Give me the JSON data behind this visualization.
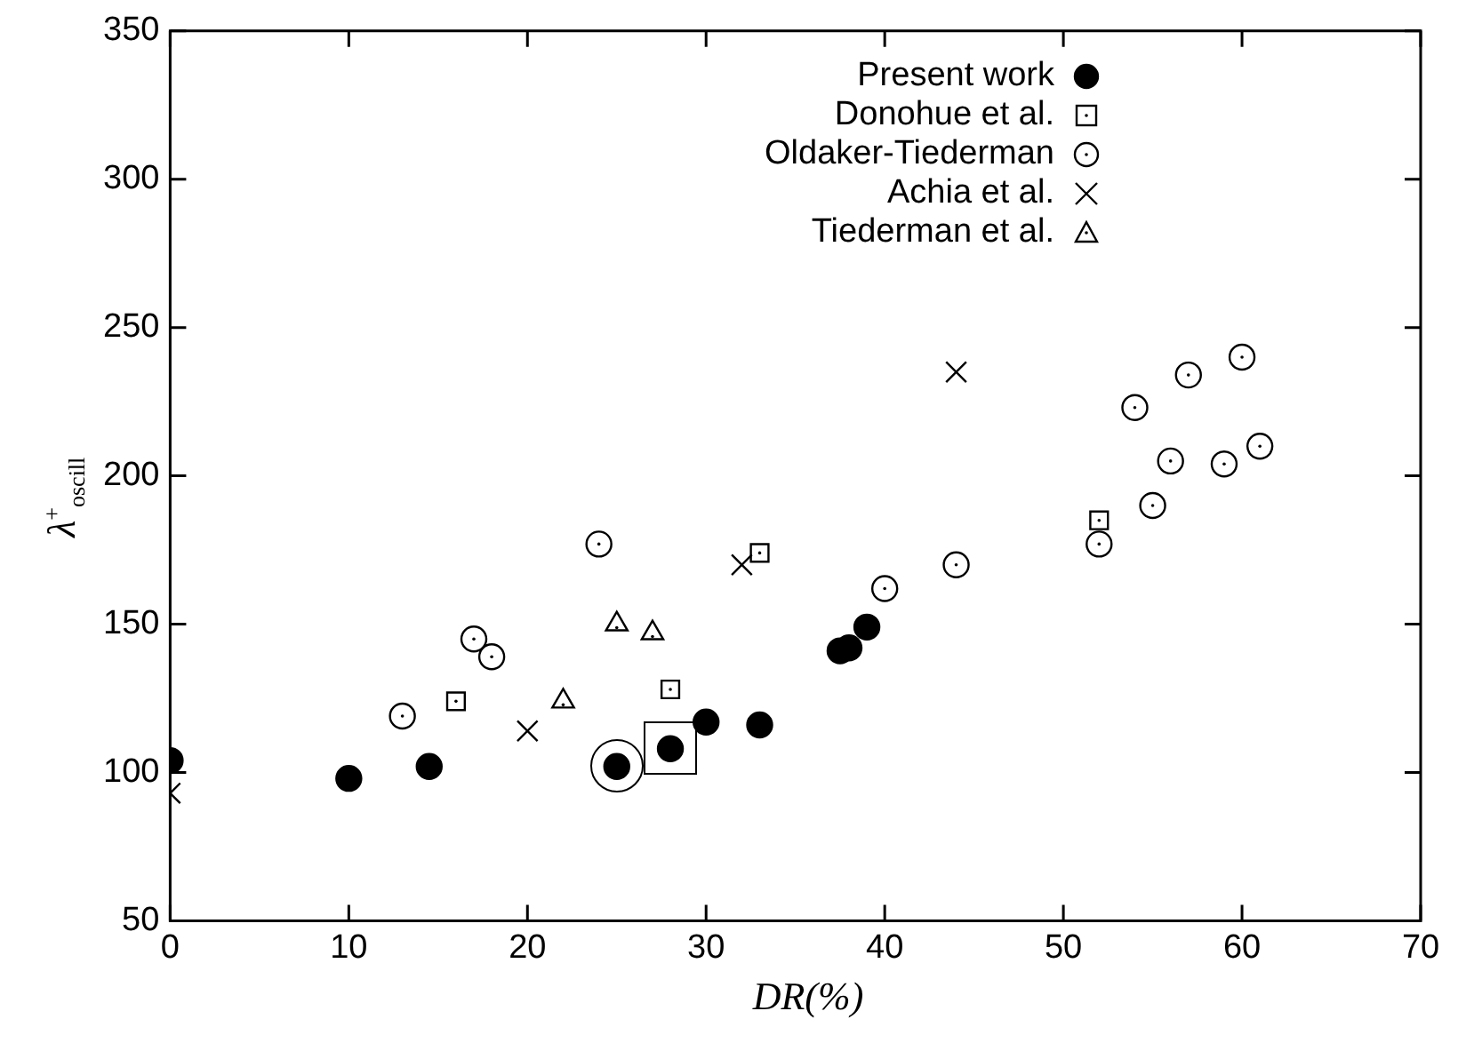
{
  "chart_data": {
    "type": "scatter",
    "xlabel": "DR(%)",
    "ylabel": "λ$^{+}$$_{oscill}$",
    "xlim": [
      0,
      70
    ],
    "xticks": [
      0,
      10,
      20,
      30,
      40,
      50,
      60,
      70
    ],
    "ylim": [
      50,
      350
    ],
    "yticks": [
      50,
      100,
      150,
      200,
      250,
      300,
      350
    ],
    "grid": false,
    "legend": "top right",
    "series": [
      {
        "name": "Present work",
        "color": "#000000",
        "marker": "circle",
        "x": [
          0,
          10,
          14.5,
          25,
          28,
          30,
          33,
          37.5,
          38,
          39
        ],
        "values": [
          104,
          98,
          102,
          102,
          108,
          117,
          116,
          141,
          142,
          149
        ]
      },
      {
        "name": "Donohue et al.",
        "color": "#000000",
        "marker": "square",
        "x": [
          16,
          28,
          33,
          52
        ],
        "values": [
          124,
          128,
          174,
          185
        ]
      },
      {
        "name": "Oldaker-Tiederman",
        "color": "#000000",
        "marker": "circle",
        "x": [
          13,
          17,
          18,
          24,
          40,
          44,
          52,
          54,
          55,
          56,
          57,
          59,
          60,
          61
        ],
        "values": [
          119,
          145,
          139,
          177,
          162,
          170,
          177,
          223,
          190,
          205,
          234,
          204,
          240,
          210
        ]
      },
      {
        "name": "Achia et al.",
        "color": "#000000",
        "marker": "cross",
        "x": [
          0,
          20,
          32,
          44
        ],
        "values": [
          93,
          114,
          170,
          235
        ]
      },
      {
        "name": "Tiederman et al.",
        "color": "#000000",
        "marker": "triangle",
        "x": [
          22,
          25,
          27
        ],
        "values": [
          124,
          150,
          147
        ]
      }
    ]
  }
}
